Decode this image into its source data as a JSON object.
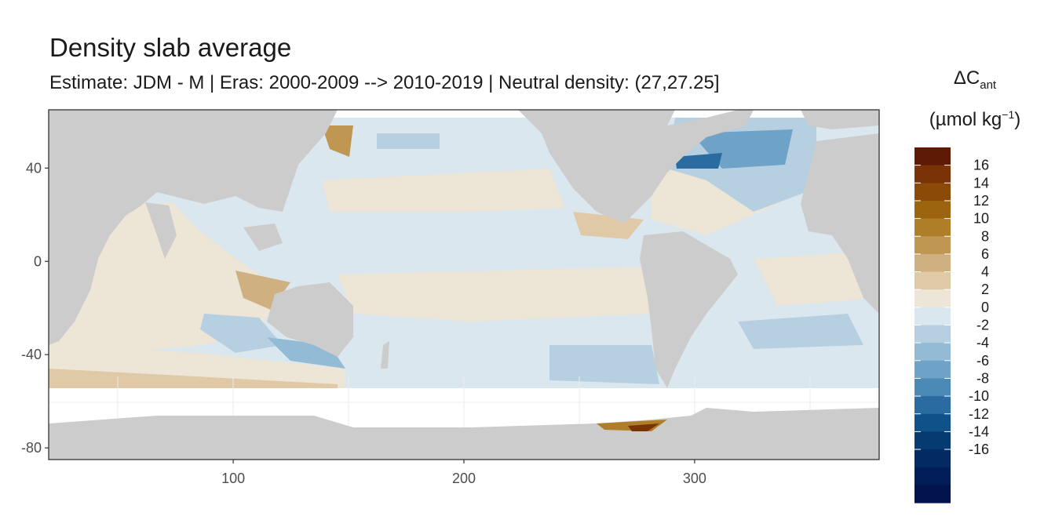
{
  "title": "Density slab average",
  "subtitle": "Estimate: JDM - M | Eras: 2000-2009 --> 2010-2019 | Neutral density: (27,27.25]",
  "map": {
    "x_range": [
      20,
      380
    ],
    "y_range": [
      -85,
      65
    ],
    "x_ticks": [
      100,
      200,
      300
    ],
    "y_ticks": [
      40,
      0,
      -40,
      -80
    ],
    "land_color": "#cccccc",
    "no_data_color": "#ffffff",
    "panel_border": "#333333",
    "grid": true
  },
  "legend": {
    "title_main": "ΔC",
    "title_sub": "ant",
    "unit_open": "(µmol kg",
    "unit_sup": "−1",
    "unit_close": ")",
    "bins": [
      {
        "label": "16",
        "color": "#5e1a05"
      },
      {
        "label": "14",
        "color": "#7a3306"
      },
      {
        "label": "12",
        "color": "#8c4a08"
      },
      {
        "label": "10",
        "color": "#9d640f"
      },
      {
        "label": "8",
        "color": "#ae7e29"
      },
      {
        "label": "6",
        "color": "#bf9652"
      },
      {
        "label": "4",
        "color": "#cfb080"
      },
      {
        "label": "2",
        "color": "#e0c9a6"
      },
      {
        "label": "0",
        "color": "#ede5d6"
      },
      {
        "label": "-2",
        "color": "#dbe7ee"
      },
      {
        "label": "-4",
        "color": "#b6d0e2"
      },
      {
        "label": "-6",
        "color": "#94bbd5"
      },
      {
        "label": "-8",
        "color": "#6fa2c7"
      },
      {
        "label": "-10",
        "color": "#4b89b7"
      },
      {
        "label": "-12",
        "color": "#2a6ca2"
      },
      {
        "label": "-14",
        "color": "#0f5189"
      },
      {
        "label": "-16",
        "color": "#063b72"
      },
      {
        "label": "",
        "color": "#032a63"
      }
    ],
    "tail_colors": [
      "#021e58",
      "#01144c"
    ]
  }
}
